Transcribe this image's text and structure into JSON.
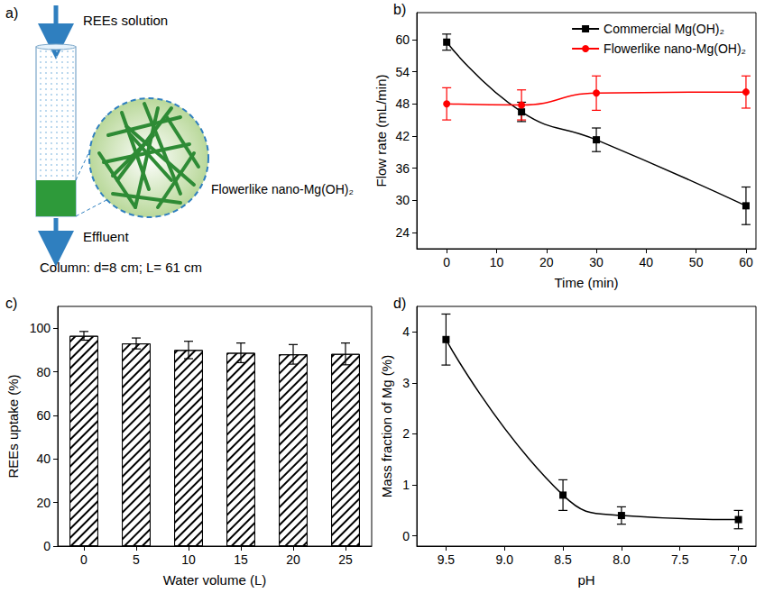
{
  "diagram": {
    "panel": "a)",
    "inlet_label": "REEs solution",
    "bed_label": "Flowerlike nano-Mg(OH)₂",
    "outlet_label": "Effluent",
    "column_label": "Column: d=8 cm; L= 61 cm"
  },
  "chart_data": [
    {
      "panel": "b)",
      "type": "line",
      "x_label": "Time (min)",
      "y_label": "Flow rate (mL/min)",
      "x": [
        0,
        15,
        30,
        60
      ],
      "xlim": [
        -6,
        62
      ],
      "xticks": [
        0,
        10,
        20,
        30,
        40,
        50,
        60
      ],
      "ylim": [
        21,
        65
      ],
      "yticks": [
        24,
        30,
        36,
        42,
        48,
        54,
        60
      ],
      "grid": false,
      "legend": "top-right",
      "series": [
        {
          "name": "Commercial Mg(OH)₂",
          "color": "#000000",
          "marker": "square",
          "line_style": "solid",
          "values": [
            59.5,
            46.5,
            41.3,
            29.0
          ],
          "errors": [
            1.5,
            1.8,
            2.2,
            3.5
          ]
        },
        {
          "name": "Flowerlike nano-Mg(OH)₂",
          "color": "#ff0000",
          "marker": "circle",
          "line_style": "solid",
          "values": [
            48.0,
            47.8,
            50.0,
            50.2
          ],
          "errors": [
            3.0,
            2.8,
            3.2,
            3.0
          ]
        }
      ]
    },
    {
      "panel": "c)",
      "type": "bar",
      "x_label": "Water volume (L)",
      "y_label": "REEs uptake (%)",
      "categories": [
        "0",
        "5",
        "10",
        "15",
        "20",
        "25"
      ],
      "values": [
        96.5,
        93.0,
        90.0,
        88.7,
        88.0,
        88.2
      ],
      "errors": [
        2.0,
        2.5,
        4.0,
        4.5,
        4.5,
        5.0
      ],
      "color": "#000000",
      "ylim": [
        0,
        110
      ],
      "yticks": [
        0,
        20,
        40,
        60,
        80,
        100
      ],
      "grid": false
    },
    {
      "panel": "d)",
      "type": "line",
      "x_label": "pH",
      "y_label": "Mass fraction of Mg (%)",
      "x": [
        9.5,
        8.5,
        8.0,
        7.0
      ],
      "values": [
        3.85,
        0.8,
        0.4,
        0.32
      ],
      "errors": [
        0.5,
        0.3,
        0.17,
        0.18
      ],
      "color": "#000000",
      "marker": "square",
      "line_style": "solid",
      "xlim": [
        9.75,
        6.85
      ],
      "xticks": [
        9.5,
        {
          "value": 9,
          "label": "9.0"
        },
        8.5,
        {
          "value": 8,
          "label": "8.0"
        },
        7.5,
        {
          "value": 7,
          "label": "7.0"
        }
      ],
      "ylim": [
        -0.2,
        4.5
      ],
      "yticks": [
        0,
        1,
        2,
        3,
        4
      ],
      "grid": false
    }
  ]
}
